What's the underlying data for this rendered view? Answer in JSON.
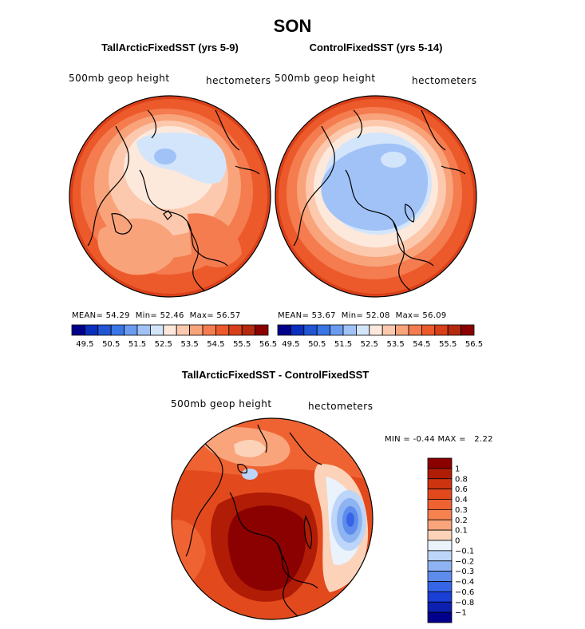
{
  "page": {
    "title": "SON"
  },
  "panels": [
    {
      "title": "TallArcticFixedSST (yrs 5-9)",
      "field_label": "500mb geop height",
      "units": "hectometers",
      "stats": {
        "mean_label": "MEAN=",
        "mean": "54.29",
        "min_label": "Min=",
        "min": "52.46",
        "max_label": "Max=",
        "max": "56.57"
      }
    },
    {
      "title": "ControlFixedSST (yrs 5-14)",
      "field_label": "500mb geop height",
      "units": "hectometers",
      "stats": {
        "mean_label": "MEAN=",
        "mean": "53.67",
        "min_label": "Min=",
        "min": "52.08",
        "max_label": "Max=",
        "max": "56.09"
      }
    },
    {
      "title": "TallArcticFixedSST - ControlFixedSST",
      "field_label": "500mb geop height",
      "units": "hectometers",
      "stats": {
        "min_label": "MIN =",
        "min": "-0.44",
        "max_label": "MAX =",
        "max": "2.22"
      }
    }
  ],
  "chart_data": [
    {
      "type": "heatmap",
      "projection": "north-polar-stereographic",
      "title": "TallArcticFixedSST (yrs 5-9)",
      "variable": "500mb geop height",
      "units": "hectometers",
      "mean": 54.29,
      "min": 52.46,
      "max": 56.57,
      "colorbar": {
        "orientation": "horizontal",
        "colors": [
          "#00008b",
          "#0a2fbf",
          "#2155d6",
          "#3a75e6",
          "#6b9bf0",
          "#a0c2f7",
          "#d3e5fb",
          "#fde8dc",
          "#fcc9ae",
          "#f9a37b",
          "#f47c4f",
          "#ec5a2b",
          "#d9401a",
          "#b52a0e",
          "#8b0000"
        ],
        "tick_labels": [
          "49.5",
          "50.5",
          "51.5",
          "52.5",
          "53.5",
          "54.5",
          "55.5",
          "56.5"
        ]
      }
    },
    {
      "type": "heatmap",
      "projection": "north-polar-stereographic",
      "title": "ControlFixedSST (yrs 5-14)",
      "variable": "500mb geop height",
      "units": "hectometers",
      "mean": 53.67,
      "min": 52.08,
      "max": 56.09,
      "colorbar": {
        "orientation": "horizontal",
        "colors": [
          "#00008b",
          "#0a2fbf",
          "#2155d6",
          "#3a75e6",
          "#6b9bf0",
          "#a0c2f7",
          "#d3e5fb",
          "#fde8dc",
          "#fcc9ae",
          "#f9a37b",
          "#f47c4f",
          "#ec5a2b",
          "#d9401a",
          "#b52a0e",
          "#8b0000"
        ],
        "tick_labels": [
          "49.5",
          "50.5",
          "51.5",
          "52.5",
          "53.5",
          "54.5",
          "55.5",
          "56.5"
        ]
      }
    },
    {
      "type": "heatmap",
      "projection": "north-polar-stereographic",
      "title": "TallArcticFixedSST - ControlFixedSST",
      "variable": "500mb geop height",
      "units": "hectometers",
      "min": -0.44,
      "max": 2.22,
      "colorbar": {
        "orientation": "vertical",
        "levels": [
          1,
          0.8,
          0.6,
          0.4,
          0.3,
          0.2,
          0.1,
          0,
          -0.1,
          -0.2,
          -0.3,
          -0.4,
          -0.6,
          -0.8,
          -1
        ],
        "tick_labels": [
          "1",
          "0.8",
          "0.6",
          "0.4",
          "0.3",
          "0.2",
          "0.1",
          "0",
          "−0.1",
          "−0.2",
          "−0.3",
          "−0.4",
          "−0.6",
          "−0.8",
          "−1"
        ],
        "colors": [
          "#8b0000",
          "#b01c05",
          "#cf3410",
          "#e24a1d",
          "#ef6332",
          "#f5824f",
          "#f9a47b",
          "#fcd2b8",
          "#eaf2fc",
          "#bcd5f8",
          "#8eb3f2",
          "#5e8ced",
          "#3565e6",
          "#1a3fd6",
          "#0c20b0",
          "#00008b"
        ]
      }
    }
  ]
}
